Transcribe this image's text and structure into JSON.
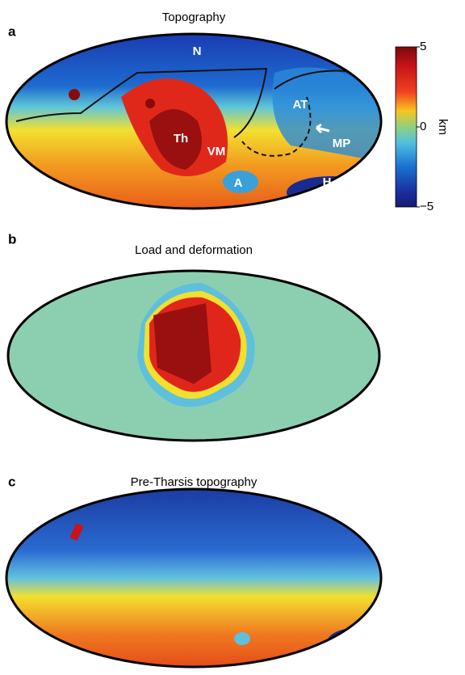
{
  "panels": [
    {
      "letter": "a",
      "title": "Topography",
      "labels": [
        "N",
        "AT",
        "Th",
        "VM",
        "MP",
        "A",
        "H"
      ]
    },
    {
      "letter": "b",
      "title": "Load and deformation"
    },
    {
      "letter": "c",
      "title": "Pre-Tharsis topography"
    }
  ],
  "colorbar": {
    "label": "km",
    "range": [
      -5,
      5
    ],
    "ticks": [
      5,
      0,
      {
        "value": -5,
        "label": "−5"
      }
    ]
  }
}
